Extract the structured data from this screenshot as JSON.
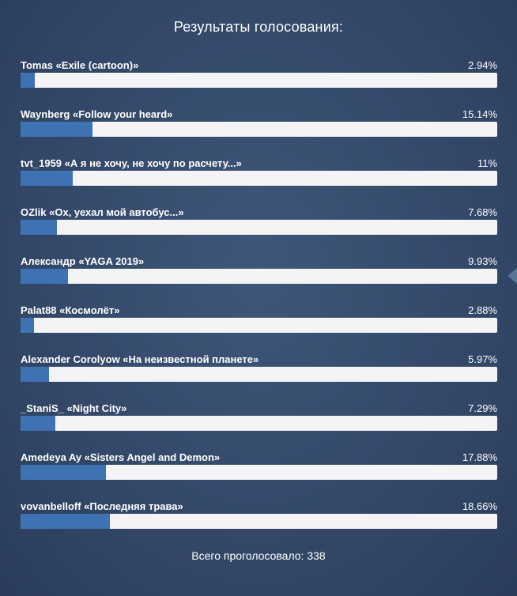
{
  "poll": {
    "title": "Результаты голосования:",
    "options": [
      {
        "label": "Tomas «Exile (cartoon)»",
        "percent_text": "2.94%",
        "percent": 2.94
      },
      {
        "label": "Waynberg «Follow your heard»",
        "percent_text": "15.14%",
        "percent": 15.14
      },
      {
        "label": "tvt_1959 «А я не хочу, не хочу по расчету...»",
        "percent_text": "11%",
        "percent": 11
      },
      {
        "label": "OZlik «Ох, уехал мой автобус...»",
        "percent_text": "7.68%",
        "percent": 7.68
      },
      {
        "label": "Александр «YAGA 2019»",
        "percent_text": "9.93%",
        "percent": 9.93
      },
      {
        "label": "Palat88 «Космолёт»",
        "percent_text": "2.88%",
        "percent": 2.88
      },
      {
        "label": "Alexander Corolyow «На неизвестной планете»",
        "percent_text": "5.97%",
        "percent": 5.97
      },
      {
        "label": "_StaniS_ «Night City»",
        "percent_text": "7.29%",
        "percent": 7.29
      },
      {
        "label": "Amedeya Ay «Sisters Angel and Demon»",
        "percent_text": "17.88%",
        "percent": 17.88
      },
      {
        "label": "vovanbelloff «Последняя трава»",
        "percent_text": "18.66%",
        "percent": 18.66
      }
    ],
    "total_text": "Всего проголосовало: 338"
  },
  "icons": {
    "side_arrow": "chevron-left-icon"
  },
  "colors": {
    "bar_fill": "#3f72b3",
    "bar_track": "#f4f4f6"
  }
}
